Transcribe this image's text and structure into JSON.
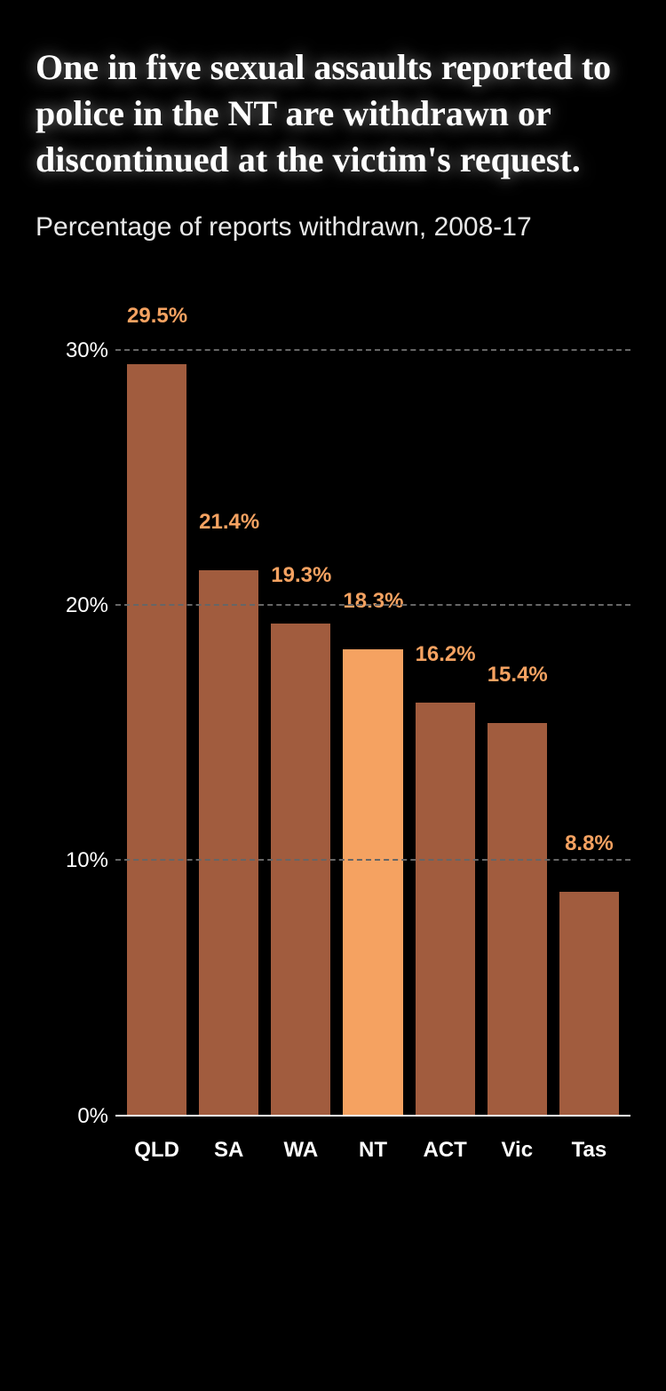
{
  "title": "One in five sexual assaults reported to police in the NT are withdrawn or discontinued at the victim's request.",
  "subtitle": "Percentage of reports withdrawn, 2008-17",
  "chart": {
    "type": "bar",
    "background_color": "#000000",
    "grid_color": "#666666",
    "axis_color": "#ffffff",
    "y": {
      "min": 0,
      "max": 31,
      "ticks": [
        0,
        10,
        20,
        30
      ],
      "tick_labels": [
        "0%",
        "10%",
        "20%",
        "30%"
      ],
      "label_color": "#ffffff",
      "label_fontsize": 24
    },
    "bar_colors": {
      "default": "#a15c3e",
      "highlight": "#f5a261"
    },
    "value_label_colors": {
      "default": "#f5a261",
      "highlight": "#f5a261"
    },
    "value_label_fontsize": 24,
    "x_label_fontsize": 24,
    "x_label_color": "#ffffff",
    "title_fontsize": 40,
    "subtitle_fontsize": 30,
    "series": [
      {
        "category": "QLD",
        "value": 29.5,
        "label": "29.5%",
        "highlight": false
      },
      {
        "category": "SA",
        "value": 21.4,
        "label": "21.4%",
        "highlight": false
      },
      {
        "category": "WA",
        "value": 19.3,
        "label": "19.3%",
        "highlight": false
      },
      {
        "category": "NT",
        "value": 18.3,
        "label": "18.3%",
        "highlight": true
      },
      {
        "category": "ACT",
        "value": 16.2,
        "label": "16.2%",
        "highlight": false
      },
      {
        "category": "Vic",
        "value": 15.4,
        "label": "15.4%",
        "highlight": false
      },
      {
        "category": "Tas",
        "value": 8.8,
        "label": "8.8%",
        "highlight": false
      }
    ]
  }
}
